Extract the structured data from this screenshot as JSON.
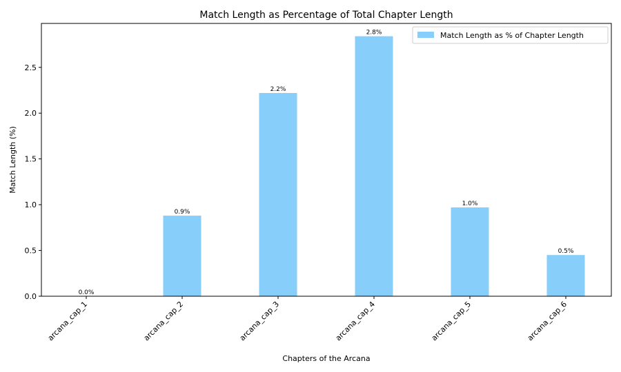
{
  "chart_data": {
    "type": "bar",
    "title": "Match Length as Percentage of Total Chapter Length",
    "xlabel": "Chapters of the Arcana",
    "ylabel": "Match Length (%)",
    "categories": [
      "arcana_cap_1",
      "arcana_cap_2",
      "arcana_cap_3",
      "arcana_cap_4",
      "arcana_cap_5",
      "arcana_cap_6"
    ],
    "series": [
      {
        "name": "Match Length as % of Chapter Length",
        "values": [
          0.0,
          0.88,
          2.22,
          2.84,
          0.97,
          0.45
        ],
        "data_labels": [
          "0.0%",
          "0.9%",
          "2.2%",
          "2.8%",
          "1.0%",
          "0.5%"
        ],
        "color": "#87CEFA"
      }
    ],
    "ylim": [
      0,
      2.98
    ],
    "yticks": [
      0.0,
      0.5,
      1.0,
      1.5,
      2.0,
      2.5
    ],
    "ytick_labels": [
      "0.0",
      "0.5",
      "1.0",
      "1.5",
      "2.0",
      "2.5"
    ],
    "grid": false,
    "legend_position": "top-right",
    "xtick_rotation": -45
  }
}
